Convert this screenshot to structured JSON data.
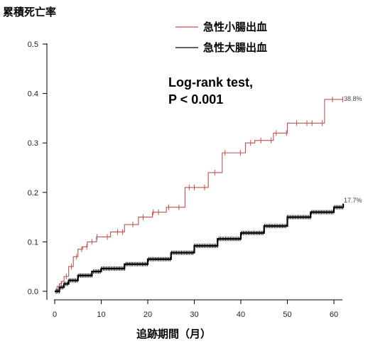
{
  "chart_data": {
    "type": "line",
    "ylabel": "累積死亡率",
    "xlabel": "追跡期間（月）",
    "xlim": [
      0,
      62
    ],
    "ylim": [
      0,
      0.5
    ],
    "xticks": [
      0,
      10,
      20,
      30,
      40,
      50,
      60
    ],
    "yticks": [
      0.0,
      0.1,
      0.2,
      0.3,
      0.4,
      0.5
    ],
    "xtick_labels": [
      "0",
      "10",
      "20",
      "30",
      "40",
      "50",
      "60"
    ],
    "ytick_labels": [
      "0.0",
      "0.1",
      "0.2",
      "0.3",
      "0.4",
      "0.5"
    ],
    "legend_position": "top-right",
    "annotation": [
      "Log-rank test,",
      "P < 0.001"
    ],
    "series": [
      {
        "name": "急性小腸出血",
        "color": "#c0504d",
        "end_label": "38.8%",
        "x": [
          0,
          0.5,
          1,
          1.5,
          2,
          3,
          4,
          5,
          6,
          7,
          9,
          12,
          15,
          18,
          21,
          24,
          26,
          28,
          30,
          33,
          36,
          39,
          41,
          43,
          47,
          50,
          55,
          58,
          60,
          62
        ],
        "y": [
          0,
          0.01,
          0.015,
          0.02,
          0.03,
          0.05,
          0.07,
          0.085,
          0.09,
          0.1,
          0.11,
          0.12,
          0.135,
          0.15,
          0.16,
          0.17,
          0.17,
          0.21,
          0.21,
          0.24,
          0.28,
          0.28,
          0.3,
          0.305,
          0.32,
          0.34,
          0.34,
          0.388,
          0.388,
          0.388
        ]
      },
      {
        "name": "急性大腸出血",
        "color": "#000000",
        "end_label": "17.7%",
        "x": [
          0,
          1,
          2,
          3,
          5,
          8,
          10,
          15,
          20,
          25,
          30,
          35,
          40,
          45,
          50,
          55,
          60,
          62
        ],
        "y": [
          0,
          0.008,
          0.015,
          0.022,
          0.032,
          0.04,
          0.046,
          0.055,
          0.065,
          0.078,
          0.092,
          0.106,
          0.118,
          0.132,
          0.15,
          0.16,
          0.17,
          0.177
        ]
      }
    ]
  }
}
